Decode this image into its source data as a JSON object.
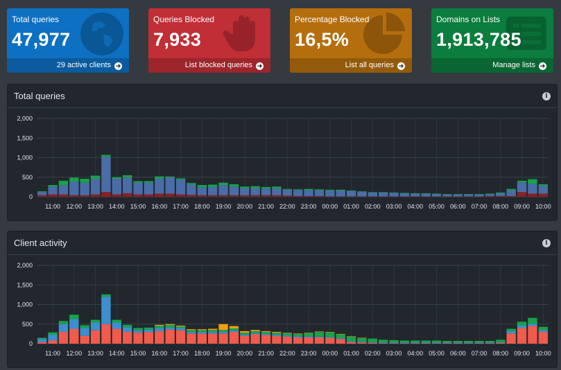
{
  "tiles": [
    {
      "title": "Total queries",
      "value": "47,977",
      "link": "29 active clients",
      "color": "#0e70c1",
      "icon": "globe-icon"
    },
    {
      "title": "Queries Blocked",
      "value": "7,933",
      "link": "List blocked queries",
      "color": "#c02e36",
      "icon": "hand-icon"
    },
    {
      "title": "Percentage Blocked",
      "value": "16,5%",
      "link": "List all queries",
      "color": "#b56e0e",
      "icon": "pie-chart-icon"
    },
    {
      "title": "Domains on Lists",
      "value": "1,913,785",
      "link": "Manage lists",
      "color": "#0b7d3e",
      "icon": "list-icon"
    }
  ],
  "panels": {
    "total_queries_title": "Total queries",
    "client_activity_title": "Client activity"
  },
  "chart_data": [
    {
      "type": "bar",
      "stacked": true,
      "title": "Total queries",
      "yticks": [
        "0",
        "500",
        "1,000",
        "1,500",
        "2,000"
      ],
      "ylim": [
        0,
        2000
      ],
      "xticks": [
        "11:00",
        "12:00",
        "13:00",
        "14:00",
        "15:00",
        "16:00",
        "17:00",
        "18:00",
        "19:00",
        "20:00",
        "21:00",
        "22:00",
        "23:00",
        "00:00",
        "01:00",
        "02:00",
        "03:00",
        "04:00",
        "05:00",
        "06:00",
        "07:00",
        "08:00",
        "09:00",
        "10:00"
      ],
      "colors": [
        "#8b1f24",
        "#4a6da7",
        "#16a34a"
      ],
      "series": [
        {
          "values": [
            40,
            60,
            60,
            40,
            40,
            60,
            120,
            60,
            90,
            60,
            60,
            80,
            80,
            60,
            50,
            40,
            40,
            40,
            40,
            40,
            40,
            40,
            40,
            30,
            20,
            20,
            20,
            10,
            10,
            10,
            10,
            10,
            10,
            10,
            10,
            10,
            10,
            10,
            10,
            10,
            10,
            10,
            20,
            20,
            20,
            120,
            80,
            80
          ]
        },
        {
          "values": [
            80,
            200,
            230,
            350,
            320,
            400,
            900,
            400,
            400,
            300,
            300,
            380,
            420,
            380,
            260,
            200,
            210,
            260,
            220,
            180,
            180,
            170,
            180,
            150,
            150,
            150,
            150,
            150,
            150,
            140,
            120,
            100,
            100,
            90,
            80,
            70,
            70,
            60,
            50,
            50,
            50,
            50,
            50,
            70,
            150,
            250,
            250,
            200
          ]
        },
        {
          "values": [
            20,
            40,
            120,
            100,
            100,
            80,
            50,
            40,
            60,
            40,
            40,
            60,
            20,
            30,
            40,
            60,
            60,
            60,
            60,
            40,
            50,
            40,
            40,
            20,
            20,
            30,
            20,
            20,
            20,
            10,
            10,
            10,
            10,
            10,
            10,
            10,
            10,
            10,
            10,
            10,
            10,
            10,
            10,
            20,
            30,
            40,
            120,
            40
          ]
        }
      ]
    },
    {
      "type": "bar",
      "stacked": true,
      "title": "Client activity",
      "yticks": [
        "0",
        "500",
        "1,000",
        "1,500",
        "2,000"
      ],
      "ylim": [
        0,
        2000
      ],
      "xticks": [
        "11:00",
        "12:00",
        "13:00",
        "14:00",
        "15:00",
        "16:00",
        "17:00",
        "18:00",
        "19:00",
        "20:00",
        "21:00",
        "22:00",
        "23:00",
        "00:00",
        "01:00",
        "02:00",
        "03:00",
        "04:00",
        "05:00",
        "06:00",
        "07:00",
        "08:00",
        "09:00",
        "10:00"
      ],
      "colors": [
        "#ef5b4c",
        "#3d8fcf",
        "#16a34a",
        "#f59e0b"
      ],
      "series": [
        {
          "values": [
            40,
            80,
            300,
            380,
            200,
            340,
            500,
            380,
            300,
            280,
            300,
            320,
            360,
            340,
            260,
            260,
            260,
            260,
            300,
            200,
            240,
            220,
            200,
            180,
            160,
            160,
            160,
            150,
            120,
            40,
            30,
            20,
            10,
            10,
            10,
            10,
            10,
            10,
            10,
            10,
            10,
            10,
            10,
            20,
            260,
            400,
            450,
            300
          ]
        },
        {
          "values": [
            80,
            150,
            200,
            250,
            200,
            200,
            700,
            160,
            120,
            60,
            60,
            80,
            60,
            60,
            40,
            40,
            40,
            40,
            40,
            30,
            30,
            30,
            30,
            30,
            30,
            30,
            20,
            20,
            20,
            20,
            20,
            20,
            20,
            20,
            20,
            20,
            20,
            20,
            20,
            20,
            20,
            20,
            20,
            20,
            60,
            60,
            60,
            50
          ]
        },
        {
          "values": [
            30,
            60,
            80,
            110,
            70,
            70,
            60,
            70,
            60,
            60,
            50,
            60,
            60,
            40,
            50,
            50,
            50,
            50,
            50,
            50,
            50,
            50,
            50,
            60,
            60,
            80,
            120,
            120,
            100,
            120,
            90,
            90,
            70,
            60,
            50,
            50,
            50,
            50,
            40,
            40,
            40,
            40,
            40,
            60,
            60,
            100,
            150,
            80
          ]
        },
        {
          "values": [
            0,
            0,
            0,
            0,
            0,
            0,
            0,
            0,
            0,
            0,
            0,
            20,
            20,
            20,
            20,
            20,
            30,
            150,
            60,
            40,
            30,
            20,
            20,
            10,
            10,
            10,
            10,
            10,
            10,
            10,
            10,
            0,
            0,
            0,
            0,
            0,
            0,
            0,
            0,
            0,
            0,
            0,
            0,
            0,
            0,
            0,
            0,
            0
          ]
        }
      ]
    }
  ]
}
